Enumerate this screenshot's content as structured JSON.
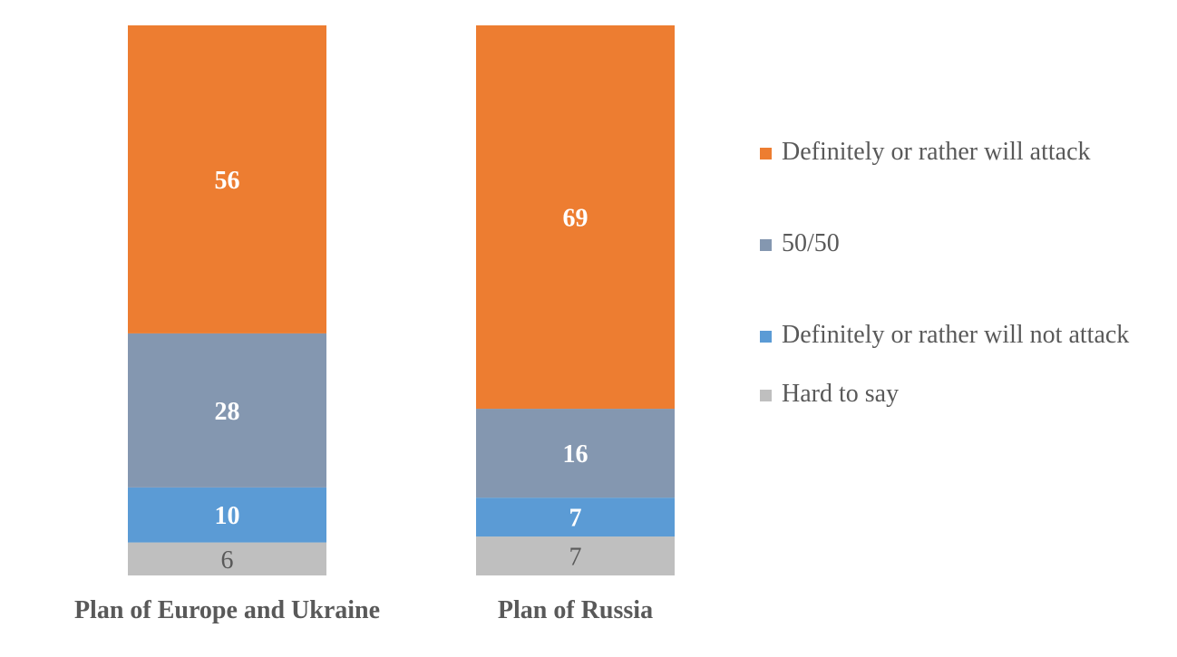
{
  "chart_data": {
    "type": "bar",
    "stacked": true,
    "title": "",
    "xlabel": "",
    "ylabel": "",
    "ylim": [
      0,
      100
    ],
    "grid": false,
    "legend_position": "right",
    "categories": [
      "Plan of Europe and Ukraine",
      "Plan of Russia"
    ],
    "series": [
      {
        "name": "Hard to say",
        "color": "#BFBFBF",
        "label_color": "#595959",
        "label_bold": false,
        "values": [
          6,
          7
        ]
      },
      {
        "name": "Definitely or rather will not attack",
        "color": "#5B9BD5",
        "label_color": "#FFFFFF",
        "label_bold": true,
        "values": [
          10,
          7
        ]
      },
      {
        "name": "50/50",
        "color": "#8497B0",
        "label_color": "#FFFFFF",
        "label_bold": true,
        "values": [
          28,
          16
        ]
      },
      {
        "name": "Definitely or rather will attack",
        "color": "#ED7D31",
        "label_color": "#FFFFFF",
        "label_bold": true,
        "values": [
          56,
          69
        ]
      }
    ],
    "legend_order": [
      3,
      2,
      1,
      0
    ]
  }
}
